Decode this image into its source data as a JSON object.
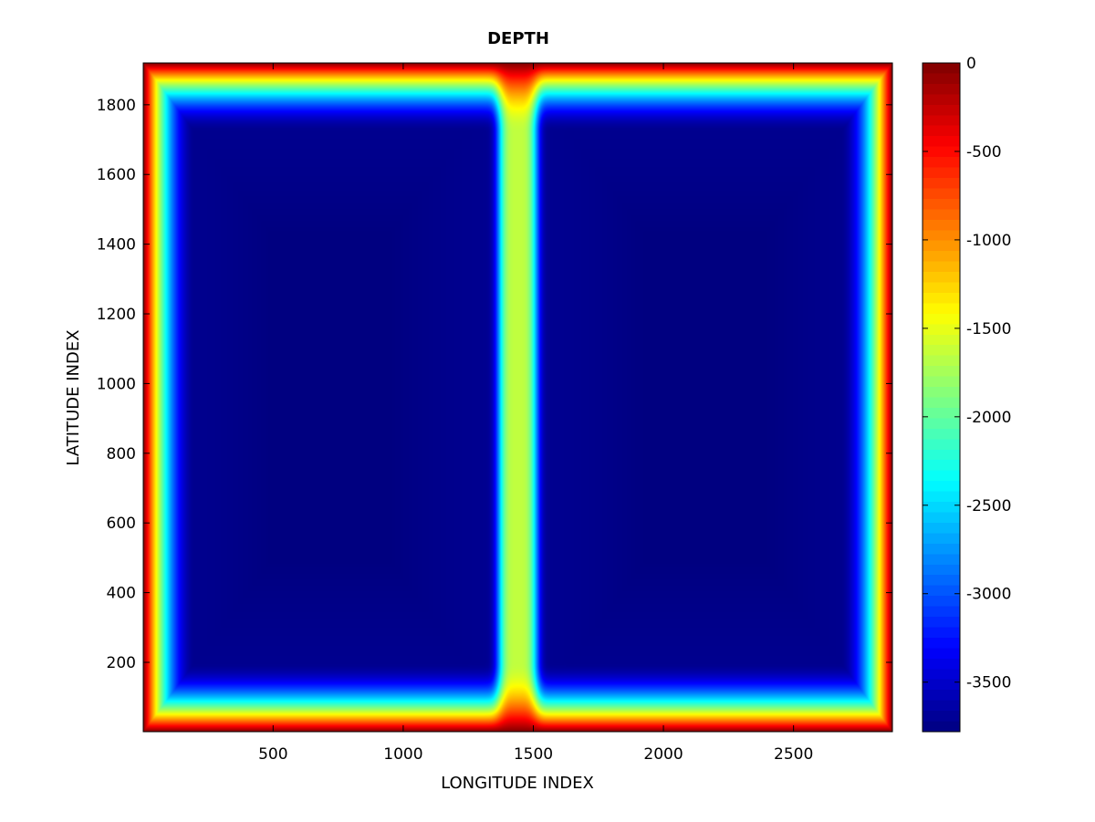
{
  "chart_data": {
    "type": "heatmap",
    "title": "DEPTH",
    "xlabel": "LONGITUDE INDEX",
    "ylabel": "LATITUDE INDEX",
    "xlim": [
      1,
      2880
    ],
    "ylim": [
      1,
      1920
    ],
    "xticks": [
      500,
      1000,
      1500,
      2000,
      2500
    ],
    "yticks": [
      200,
      400,
      600,
      800,
      1000,
      1200,
      1400,
      1600,
      1800
    ],
    "colorbar": {
      "colormap": "jet",
      "range": [
        -3780,
        0
      ],
      "ticks": [
        0,
        -500,
        -1000,
        -1500,
        -2000,
        -2500,
        -3000,
        -3500
      ]
    },
    "field": {
      "description_of_values": "two deep basins separated by a central ridge",
      "max_depth": -3780,
      "ridge_depth": -1650,
      "ridge_x": 1440,
      "edge_depth": 0,
      "shelf_width": 200
    }
  }
}
